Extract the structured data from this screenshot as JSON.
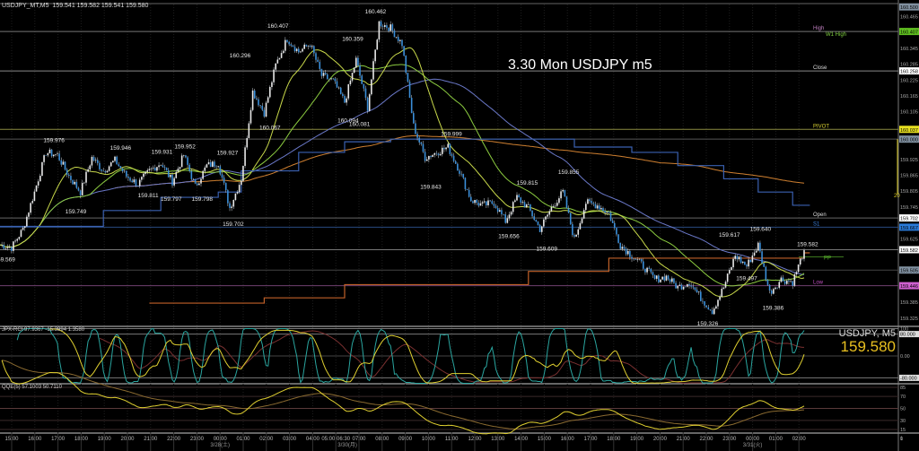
{
  "header": {
    "symbol": "USDJPY_MT,M5",
    "ohlc": "159.541 159.582 159.541 159.580"
  },
  "overlay_title": "3.30 Mon USDJPY m5",
  "quote": {
    "symbol": "USDJPY, M5",
    "last": "159.580"
  },
  "colors": {
    "bg": "#000000",
    "bull": "#e8e8e8",
    "bear": "#3a8ed8",
    "ma_fast": "#c8d84a",
    "ma_mid": "#8ccc40",
    "ma_slow": "#6a78c8",
    "ma_long": "#d08030",
    "step_upper": "#3a60b0",
    "step_lower": "#c06028",
    "rci_fast": "#2aa6a0",
    "rci_mid": "#e0d030",
    "rci_long": "#7a3030",
    "qqe": "#e0d030",
    "qqe_slow": "#8a6a30"
  },
  "chart_data": {
    "type": "candlestick",
    "bar_unit": "30 minutes (6 x M5 candles per point)",
    "ylim": [
      159.3,
      160.5
    ],
    "closes": [
      159.6,
      159.59,
      159.66,
      159.8,
      159.95,
      159.94,
      159.86,
      159.8,
      159.93,
      159.88,
      159.92,
      159.86,
      159.83,
      159.88,
      159.91,
      159.84,
      159.94,
      159.82,
      159.9,
      159.91,
      159.74,
      159.85,
      160.18,
      160.1,
      160.28,
      160.38,
      160.33,
      160.36,
      160.24,
      160.22,
      160.14,
      160.3,
      160.12,
      160.44,
      160.42,
      160.36,
      160.05,
      159.93,
      159.95,
      159.97,
      159.88,
      159.77,
      159.75,
      159.76,
      159.69,
      159.78,
      159.74,
      159.66,
      159.74,
      159.8,
      159.62,
      159.76,
      159.75,
      159.72,
      159.6,
      159.56,
      159.52,
      159.47,
      159.48,
      159.44,
      159.46,
      159.4,
      159.35,
      159.44,
      159.56,
      159.52,
      159.6,
      159.42,
      159.47,
      159.46,
      159.58
    ],
    "step_upper": [
      [
        0,
        159.67
      ],
      [
        9,
        159.73
      ],
      [
        14,
        159.78
      ],
      [
        19,
        159.8
      ],
      [
        21,
        159.88
      ],
      [
        26,
        159.95
      ],
      [
        30,
        159.99
      ],
      [
        34,
        160.0
      ],
      [
        50,
        159.97
      ],
      [
        55,
        159.95
      ],
      [
        59,
        159.9
      ],
      [
        63,
        159.85
      ],
      [
        66,
        159.8
      ],
      [
        69,
        159.75
      ]
    ],
    "step_lower": [
      [
        13,
        159.38
      ],
      [
        23,
        159.4
      ],
      [
        30,
        159.45
      ],
      [
        46,
        159.5
      ],
      [
        53,
        159.55
      ],
      [
        70,
        159.57
      ]
    ],
    "annotations": [
      {
        "text": "159.569",
        "price": 159.569,
        "bar": 0.4,
        "pos": "below"
      },
      {
        "text": "159.976",
        "price": 159.976,
        "bar": 4.7,
        "pos": "above"
      },
      {
        "text": "159.749",
        "price": 159.749,
        "bar": 6.6,
        "pos": "below"
      },
      {
        "text": "159.946",
        "price": 159.946,
        "bar": 10.5,
        "pos": "above"
      },
      {
        "text": "159.811",
        "price": 159.811,
        "bar": 12.9,
        "pos": "below"
      },
      {
        "text": "159.931",
        "price": 159.931,
        "bar": 14.1,
        "pos": "above"
      },
      {
        "text": "159.797",
        "price": 159.797,
        "bar": 14.9,
        "pos": "below"
      },
      {
        "text": "159.952",
        "price": 159.952,
        "bar": 16.1,
        "pos": "above"
      },
      {
        "text": "159.798",
        "price": 159.798,
        "bar": 17.6,
        "pos": "below"
      },
      {
        "text": "159.927",
        "price": 159.927,
        "bar": 19.8,
        "pos": "above"
      },
      {
        "text": "159.702",
        "price": 159.702,
        "bar": 20.3,
        "pos": "below"
      },
      {
        "text": "160.296",
        "price": 160.296,
        "bar": 20.9,
        "pos": "above"
      },
      {
        "text": "160.067",
        "price": 160.067,
        "bar": 23.5,
        "pos": "below"
      },
      {
        "text": "160.407",
        "price": 160.407,
        "bar": 24.2,
        "pos": "above"
      },
      {
        "text": "160.359",
        "price": 160.359,
        "bar": 30.7,
        "pos": "above"
      },
      {
        "text": "160.094",
        "price": 160.094,
        "bar": 30.3,
        "pos": "below"
      },
      {
        "text": "160.081",
        "price": 160.081,
        "bar": 31.3,
        "pos": "below"
      },
      {
        "text": "160.462",
        "price": 160.462,
        "bar": 32.7,
        "pos": "above"
      },
      {
        "text": "159.999",
        "price": 159.999,
        "bar": 39.3,
        "pos": "above"
      },
      {
        "text": "159.843",
        "price": 159.843,
        "bar": 37.5,
        "pos": "below"
      },
      {
        "text": "159.815",
        "price": 159.815,
        "bar": 45.9,
        "pos": "above"
      },
      {
        "text": "159.656",
        "price": 159.656,
        "bar": 44.3,
        "pos": "below"
      },
      {
        "text": "159.609",
        "price": 159.609,
        "bar": 47.6,
        "pos": "below"
      },
      {
        "text": "159.855",
        "price": 159.855,
        "bar": 49.5,
        "pos": "above"
      },
      {
        "text": "159.326",
        "price": 159.326,
        "bar": 61.6,
        "pos": "below"
      },
      {
        "text": "159.617",
        "price": 159.617,
        "bar": 63.5,
        "pos": "above"
      },
      {
        "text": "159.497",
        "price": 159.497,
        "bar": 65.0,
        "pos": "below"
      },
      {
        "text": "159.640",
        "price": 159.64,
        "bar": 66.2,
        "pos": "above"
      },
      {
        "text": "159.386",
        "price": 159.386,
        "bar": 67.3,
        "pos": "below"
      },
      {
        "text": "159.582",
        "price": 159.582,
        "bar": 70.3,
        "pos": "above"
      }
    ],
    "levels": [
      {
        "label": "High",
        "price": 160.407,
        "color": "#c080c0",
        "line": "#777777"
      },
      {
        "label": "W1 High",
        "price": 160.4,
        "color": "#80d040",
        "line": ""
      },
      {
        "label": "Close",
        "price": 160.258,
        "color": "#dddddd",
        "line": "#888888"
      },
      {
        "label": "PIVOT",
        "price": 160.037,
        "color": "#d8d030",
        "line": "#8a8a40"
      },
      {
        "label": "",
        "price": 160.0,
        "color": "#888888",
        "line": "#555555"
      },
      {
        "label": "Open",
        "price": 159.702,
        "color": "#dddddd",
        "line": "#666666"
      },
      {
        "label": "S1",
        "price": 159.667,
        "color": "#3a80e0",
        "line": "#284a80"
      },
      {
        "label": "",
        "price": 159.582,
        "color": "#ffffff",
        "line": "#777777"
      },
      {
        "label": "PP",
        "price": 159.555,
        "color": "#60c030",
        "line": ""
      },
      {
        "label": "",
        "price": 159.505,
        "color": "#888888",
        "line": "#444444"
      },
      {
        "label": "Low",
        "price": 159.446,
        "color": "#c050c0",
        "line": "#704070"
      }
    ],
    "price_axis": [
      {
        "text": "160.500",
        "price": 160.5,
        "box": "#8090a0"
      },
      {
        "text": "160.465",
        "price": 160.465
      },
      {
        "text": "160.407",
        "price": 160.407,
        "box": "#60c020"
      },
      {
        "text": "160.345",
        "price": 160.345
      },
      {
        "text": "160.285",
        "price": 160.285
      },
      {
        "text": "160.258",
        "price": 160.258,
        "box": "#ffffff"
      },
      {
        "text": "160.225",
        "price": 160.225
      },
      {
        "text": "160.165",
        "price": 160.165
      },
      {
        "text": "160.105",
        "price": 160.105
      },
      {
        "text": "160.037",
        "price": 160.037,
        "box": "#e8e020"
      },
      {
        "text": "160.000",
        "price": 160.0,
        "box": "#8090a0"
      },
      {
        "text": "159.925",
        "price": 159.925
      },
      {
        "text": "159.865",
        "price": 159.865
      },
      {
        "text": "159.805",
        "price": 159.805
      },
      {
        "text": "159.745",
        "price": 159.745
      },
      {
        "text": "159.702",
        "price": 159.702,
        "box": "#ffffff"
      },
      {
        "text": "159.667",
        "price": 159.667,
        "box": "#2a7ad8"
      },
      {
        "text": "159.625",
        "price": 159.625
      },
      {
        "text": "159.582",
        "price": 159.582,
        "box": "#ffffff"
      },
      {
        "text": "159.505",
        "price": 159.505,
        "box": "#8090a0"
      },
      {
        "text": "159.446",
        "price": 159.446,
        "box": "#d060d0"
      },
      {
        "text": "159.385",
        "price": 159.385
      },
      {
        "text": "159.325",
        "price": 159.325
      }
    ],
    "marker": {
      "label": "20",
      "from": 160.0,
      "to": 159.79,
      "color": "#d8c820"
    },
    "time_axis": [
      "15:00",
      "16:00",
      "17:00",
      "18:00",
      "19:00",
      "20:00",
      "21:00",
      "22:00",
      "23:00",
      "00:00",
      "01:00",
      "02:00",
      "03:00",
      "04:00",
      "05:00 06:30",
      "07:00",
      "08:00",
      "09:00",
      "10:00",
      "11:00",
      "12:00",
      "13:00",
      "14:00",
      "15:00",
      "16:00",
      "17:00",
      "18:00",
      "19:00",
      "20:00",
      "21:00",
      "22:00",
      "23:00",
      "00:00",
      "01:00",
      "02:00"
    ],
    "date_labels": [
      {
        "text": "3/28(土)",
        "tick": 9
      },
      {
        "text": "3/30(月)",
        "tick": 14.5
      },
      {
        "text": "3/31(火)",
        "tick": 32
      }
    ],
    "rci": {
      "title": "JPX-RCI 97.9367 -15.3994 1.3580",
      "periods": [
        9,
        26,
        52
      ],
      "axis": [
        {
          "text": "100",
          "v": 100
        },
        {
          "text": "80.000",
          "v": 80,
          "box": true
        },
        {
          "text": "0.00",
          "v": 0
        },
        {
          "text": "-80.000",
          "v": -80,
          "box": true
        }
      ]
    },
    "qqe": {
      "title": "QQE(5) 57.1003 50.7110",
      "axis": [
        85,
        70,
        50,
        30,
        15,
        1,
        0
      ]
    }
  }
}
